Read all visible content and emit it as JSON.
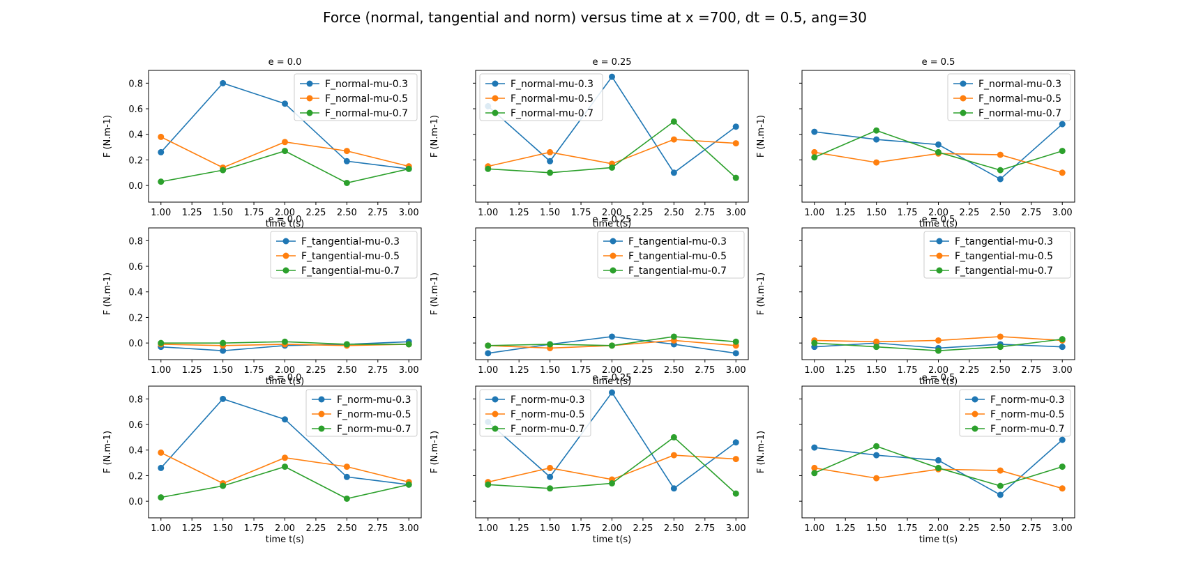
{
  "figure_title": "Force (normal, tangential and norm) versus time at x =700, dt = 0.5, ang=30",
  "colors": {
    "mu-0.3": "#1f77b4",
    "mu-0.5": "#ff7f0e",
    "mu-0.7": "#2ca02c"
  },
  "chart_data": [
    {
      "type": "line",
      "title": "e = 0.0",
      "xlabel": "time t(s)",
      "ylabel": "F (N.m-1)",
      "x": [
        1.0,
        1.5,
        2.0,
        2.5,
        3.0
      ],
      "xticks": [
        "1.00",
        "1.25",
        "1.50",
        "1.75",
        "2.00",
        "2.25",
        "2.50",
        "2.75",
        "3.00"
      ],
      "yticks": [
        "0.0",
        "0.2",
        "0.4",
        "0.6",
        "0.8"
      ],
      "ylim": [
        -0.13,
        0.9
      ],
      "legend": "upper right",
      "series": [
        {
          "name": "F_normal-mu-0.3",
          "values": [
            0.26,
            0.8,
            0.64,
            0.19,
            0.13
          ]
        },
        {
          "name": "F_normal-mu-0.5",
          "values": [
            0.38,
            0.14,
            0.34,
            0.27,
            0.15
          ]
        },
        {
          "name": "F_normal-mu-0.7",
          "values": [
            0.03,
            0.12,
            0.27,
            0.02,
            0.13
          ]
        }
      ]
    },
    {
      "type": "line",
      "title": "e = 0.25",
      "xlabel": "time t(s)",
      "ylabel": "F (N.m-1)",
      "x": [
        1.0,
        1.5,
        2.0,
        2.5,
        3.0
      ],
      "xticks": [
        "1.00",
        "1.25",
        "1.50",
        "1.75",
        "2.00",
        "2.25",
        "2.50",
        "2.75",
        "3.00"
      ],
      "yticks": [],
      "ylim": [
        -0.13,
        0.9
      ],
      "legend": "upper left",
      "series": [
        {
          "name": "F_normal-mu-0.3",
          "values": [
            0.62,
            0.19,
            0.85,
            0.1,
            0.46
          ]
        },
        {
          "name": "F_normal-mu-0.5",
          "values": [
            0.15,
            0.26,
            0.17,
            0.36,
            0.33
          ]
        },
        {
          "name": "F_normal-mu-0.7",
          "values": [
            0.13,
            0.1,
            0.14,
            0.5,
            0.06
          ]
        }
      ]
    },
    {
      "type": "line",
      "title": "e = 0.5",
      "xlabel": "time t(s)",
      "ylabel": "F (N.m-1)",
      "x": [
        1.0,
        1.5,
        2.0,
        2.5,
        3.0
      ],
      "xticks": [
        "1.00",
        "1.25",
        "1.50",
        "1.75",
        "2.00",
        "2.25",
        "2.50",
        "2.75",
        "3.00"
      ],
      "yticks": [],
      "ylim": [
        -0.13,
        0.9
      ],
      "legend": "upper right",
      "series": [
        {
          "name": "F_normal-mu-0.3",
          "values": [
            0.42,
            0.36,
            0.32,
            0.05,
            0.48
          ]
        },
        {
          "name": "F_normal-mu-0.5",
          "values": [
            0.26,
            0.18,
            0.25,
            0.24,
            0.1
          ]
        },
        {
          "name": "F_normal-mu-0.7",
          "values": [
            0.22,
            0.43,
            0.26,
            0.12,
            0.27
          ]
        }
      ]
    },
    {
      "type": "line",
      "title": "e = 0.0",
      "xlabel": "time t(s)",
      "ylabel": "F (N.m-1)",
      "x": [
        1.0,
        1.5,
        2.0,
        2.5,
        3.0
      ],
      "xticks": [
        "1.00",
        "1.25",
        "1.50",
        "1.75",
        "2.00",
        "2.25",
        "2.50",
        "2.75",
        "3.00"
      ],
      "yticks": [
        "0.0",
        "0.2",
        "0.4",
        "0.6",
        "0.8"
      ],
      "ylim": [
        -0.13,
        0.9
      ],
      "legend": "upper right",
      "series": [
        {
          "name": "F_tangential-mu-0.3",
          "values": [
            -0.03,
            -0.06,
            -0.02,
            -0.01,
            0.01
          ]
        },
        {
          "name": "F_tangential-mu-0.5",
          "values": [
            -0.01,
            -0.02,
            -0.01,
            -0.02,
            -0.01
          ]
        },
        {
          "name": "F_tangential-mu-0.7",
          "values": [
            0.0,
            0.0,
            0.01,
            -0.01,
            -0.01
          ]
        }
      ]
    },
    {
      "type": "line",
      "title": "e = 0.25",
      "xlabel": "time t(s)",
      "ylabel": "F (N.m-1)",
      "x": [
        1.0,
        1.5,
        2.0,
        2.5,
        3.0
      ],
      "xticks": [
        "1.00",
        "1.25",
        "1.50",
        "1.75",
        "2.00",
        "2.25",
        "2.50",
        "2.75",
        "3.00"
      ],
      "yticks": [],
      "ylim": [
        -0.13,
        0.9
      ],
      "legend": "upper right",
      "series": [
        {
          "name": "F_tangential-mu-0.3",
          "values": [
            -0.08,
            -0.01,
            0.05,
            -0.01,
            -0.08
          ]
        },
        {
          "name": "F_tangential-mu-0.5",
          "values": [
            -0.02,
            -0.04,
            -0.02,
            0.02,
            -0.02
          ]
        },
        {
          "name": "F_tangential-mu-0.7",
          "values": [
            -0.02,
            -0.01,
            -0.02,
            0.05,
            0.01
          ]
        }
      ]
    },
    {
      "type": "line",
      "title": "e = 0.5",
      "xlabel": "time t(s)",
      "ylabel": "F (N.m-1)",
      "x": [
        1.0,
        1.5,
        2.0,
        2.5,
        3.0
      ],
      "xticks": [
        "1.00",
        "1.25",
        "1.50",
        "1.75",
        "2.00",
        "2.25",
        "2.50",
        "2.75",
        "3.00"
      ],
      "yticks": [],
      "ylim": [
        -0.13,
        0.9
      ],
      "legend": "upper right",
      "series": [
        {
          "name": "F_tangential-mu-0.3",
          "values": [
            -0.03,
            0.0,
            -0.04,
            -0.01,
            -0.03
          ]
        },
        {
          "name": "F_tangential-mu-0.5",
          "values": [
            0.02,
            0.01,
            0.02,
            0.05,
            0.02
          ]
        },
        {
          "name": "F_tangential-mu-0.7",
          "values": [
            0.0,
            -0.03,
            -0.06,
            -0.03,
            0.03
          ]
        }
      ]
    },
    {
      "type": "line",
      "title": "e = 0.0",
      "xlabel": "time t(s)",
      "ylabel": "F (N.m-1)",
      "x": [
        1.0,
        1.5,
        2.0,
        2.5,
        3.0
      ],
      "xticks": [
        "1.00",
        "1.25",
        "1.50",
        "1.75",
        "2.00",
        "2.25",
        "2.50",
        "2.75",
        "3.00"
      ],
      "yticks": [
        "0.0",
        "0.2",
        "0.4",
        "0.6",
        "0.8"
      ],
      "ylim": [
        -0.13,
        0.9
      ],
      "legend": "upper right",
      "series": [
        {
          "name": "F_norm-mu-0.3",
          "values": [
            0.26,
            0.8,
            0.64,
            0.19,
            0.13
          ]
        },
        {
          "name": "F_norm-mu-0.5",
          "values": [
            0.38,
            0.14,
            0.34,
            0.27,
            0.15
          ]
        },
        {
          "name": "F_norm-mu-0.7",
          "values": [
            0.03,
            0.12,
            0.27,
            0.02,
            0.13
          ]
        }
      ]
    },
    {
      "type": "line",
      "title": "e = 0.25",
      "xlabel": "time t(s)",
      "ylabel": "F (N.m-1)",
      "x": [
        1.0,
        1.5,
        2.0,
        2.5,
        3.0
      ],
      "xticks": [
        "1.00",
        "1.25",
        "1.50",
        "1.75",
        "2.00",
        "2.25",
        "2.50",
        "2.75",
        "3.00"
      ],
      "yticks": [],
      "ylim": [
        -0.13,
        0.9
      ],
      "legend": "upper left",
      "series": [
        {
          "name": "F_norm-mu-0.3",
          "values": [
            0.62,
            0.19,
            0.85,
            0.1,
            0.46
          ]
        },
        {
          "name": "F_norm-mu-0.5",
          "values": [
            0.15,
            0.26,
            0.17,
            0.36,
            0.33
          ]
        },
        {
          "name": "F_norm-mu-0.7",
          "values": [
            0.13,
            0.1,
            0.14,
            0.5,
            0.06
          ]
        }
      ]
    },
    {
      "type": "line",
      "title": "e = 0.5",
      "xlabel": "time t(s)",
      "ylabel": "F (N.m-1)",
      "x": [
        1.0,
        1.5,
        2.0,
        2.5,
        3.0
      ],
      "xticks": [
        "1.00",
        "1.25",
        "1.50",
        "1.75",
        "2.00",
        "2.25",
        "2.50",
        "2.75",
        "3.00"
      ],
      "yticks": [],
      "ylim": [
        -0.13,
        0.9
      ],
      "legend": "upper right",
      "series": [
        {
          "name": "F_norm-mu-0.3",
          "values": [
            0.42,
            0.36,
            0.32,
            0.05,
            0.48
          ]
        },
        {
          "name": "F_norm-mu-0.5",
          "values": [
            0.26,
            0.18,
            0.25,
            0.24,
            0.1
          ]
        },
        {
          "name": "F_norm-mu-0.7",
          "values": [
            0.22,
            0.43,
            0.26,
            0.12,
            0.27
          ]
        }
      ]
    }
  ]
}
